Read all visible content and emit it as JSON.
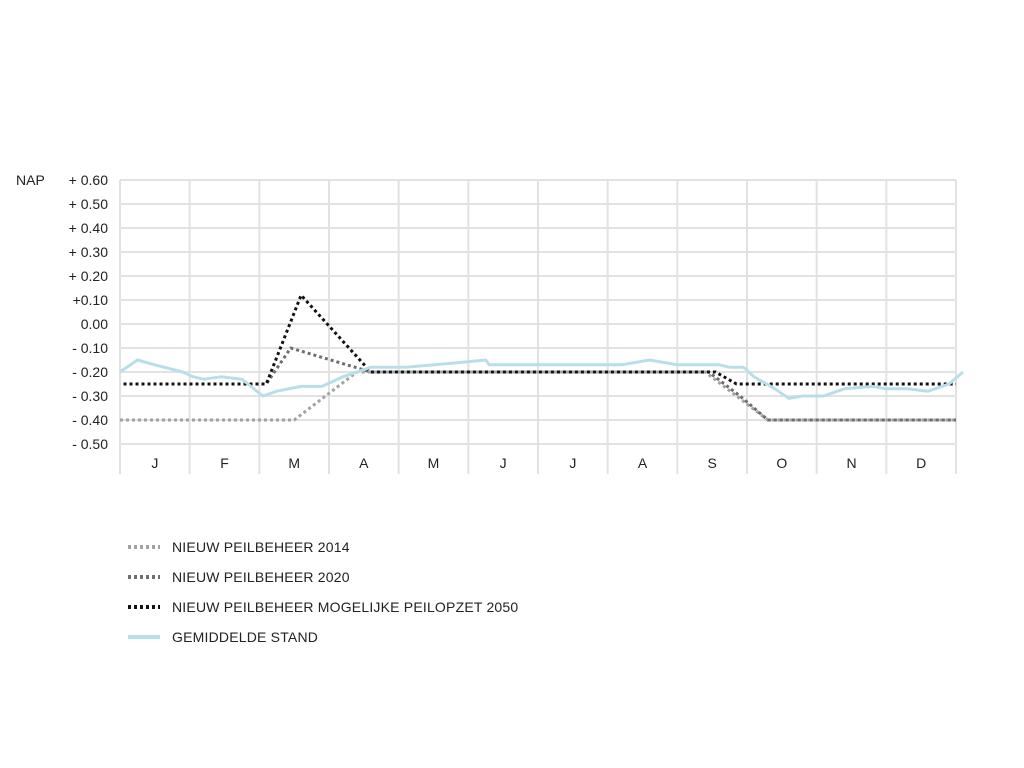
{
  "chart_data": {
    "type": "line",
    "ylabel": "NAP",
    "ylim": [
      -0.5,
      0.6
    ],
    "y_ticks": [
      {
        "value": 0.6,
        "label": "+ 0.60"
      },
      {
        "value": 0.5,
        "label": "+ 0.50"
      },
      {
        "value": 0.4,
        "label": "+ 0.40"
      },
      {
        "value": 0.3,
        "label": "+ 0.30"
      },
      {
        "value": 0.2,
        "label": "+ 0.20"
      },
      {
        "value": 0.1,
        "label": "+0.10"
      },
      {
        "value": 0.0,
        "label": "0.00"
      },
      {
        "value": -0.1,
        "label": "- 0.10"
      },
      {
        "value": -0.2,
        "label": "- 0.20"
      },
      {
        "value": -0.3,
        "label": "- 0.30"
      },
      {
        "value": -0.4,
        "label": "- 0.40"
      },
      {
        "value": -0.5,
        "label": "- 0.50"
      }
    ],
    "xlim": [
      0,
      12
    ],
    "categories": [
      "J",
      "F",
      "M",
      "A",
      "M",
      "J",
      "J",
      "A",
      "S",
      "O",
      "N",
      "D"
    ],
    "grid": true,
    "legend_position": "bottom-left",
    "series": [
      {
        "name": "NIEUW PEILBEHEER 2014",
        "color": "#a2a2a2",
        "style": "dotted",
        "x": [
          0,
          2.5,
          3.4,
          8.4,
          9.3,
          12
        ],
        "y": [
          -0.4,
          -0.4,
          -0.2,
          -0.2,
          -0.4,
          -0.4
        ]
      },
      {
        "name": "NIEUW PEILBEHEER 2020",
        "color": "#6e6e6e",
        "style": "dotted",
        "x": [
          0.05,
          2.1,
          2.45,
          3.6,
          8.45,
          8.9,
          9.3,
          12
        ],
        "y": [
          -0.25,
          -0.25,
          -0.1,
          -0.2,
          -0.2,
          -0.3,
          -0.4,
          -0.4
        ]
      },
      {
        "name": "NIEUW PEILBEHEER MOGELIJKE PEILOPZET 2050",
        "color": "#111111",
        "style": "dotted",
        "x": [
          0.05,
          2.1,
          2.6,
          3.6,
          8.55,
          8.85,
          12
        ],
        "y": [
          -0.25,
          -0.25,
          0.12,
          -0.2,
          -0.2,
          -0.25,
          -0.25
        ]
      },
      {
        "name": "GEMIDDELDE STAND",
        "color": "#b8dfe9",
        "style": "solid",
        "x": [
          0,
          0.25,
          0.5,
          0.9,
          1.05,
          1.2,
          1.45,
          1.75,
          2.05,
          2.25,
          2.6,
          2.9,
          3.2,
          3.6,
          4.1,
          4.9,
          5.25,
          5.3,
          5.7,
          6.1,
          6.6,
          6.9,
          7.2,
          7.6,
          8.0,
          8.3,
          8.6,
          8.75,
          8.95,
          9.1,
          9.4,
          9.6,
          9.8,
          10.1,
          10.4,
          10.8,
          11.0,
          11.3,
          11.6,
          11.9,
          12.1
        ],
        "y": [
          -0.2,
          -0.15,
          -0.17,
          -0.2,
          -0.22,
          -0.23,
          -0.22,
          -0.23,
          -0.3,
          -0.28,
          -0.26,
          -0.26,
          -0.22,
          -0.18,
          -0.18,
          -0.16,
          -0.15,
          -0.17,
          -0.17,
          -0.17,
          -0.17,
          -0.17,
          -0.17,
          -0.15,
          -0.17,
          -0.17,
          -0.17,
          -0.18,
          -0.18,
          -0.22,
          -0.27,
          -0.31,
          -0.3,
          -0.3,
          -0.27,
          -0.26,
          -0.27,
          -0.27,
          -0.28,
          -0.25,
          -0.2
        ]
      }
    ]
  }
}
